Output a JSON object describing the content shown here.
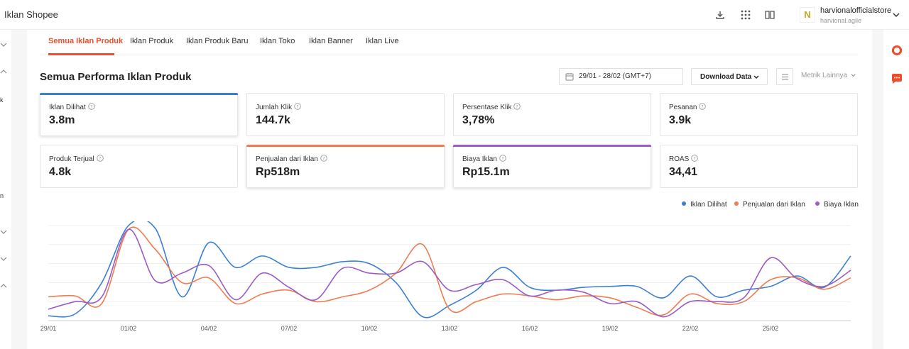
{
  "header": {
    "app_title": "Iklan Shopee",
    "icons": [
      "download-icon",
      "apps-grid-icon",
      "book-icon"
    ],
    "store_logo_letter": "N",
    "store_name": "harvionalofficialstore",
    "store_sub": "harvional.agile"
  },
  "leftnav": {
    "letters": [
      "k",
      "n"
    ]
  },
  "tabs": [
    {
      "label": "Semua Iklan Produk",
      "active": true
    },
    {
      "label": "Iklan Produk"
    },
    {
      "label": "Iklan Produk Baru"
    },
    {
      "label": "Iklan Toko"
    },
    {
      "label": "Iklan Banner"
    },
    {
      "label": "Iklan Live"
    }
  ],
  "section": {
    "title": "Semua Performa Iklan Produk",
    "date_range": "29/01 - 28/02 (GMT+7)",
    "download_label": "Download Data",
    "more_metrics_label": "Metrik Lainnya"
  },
  "metrics": [
    {
      "label": "Iklan Dilihat",
      "value": "3.8m",
      "selected_color": "#3b7fd4"
    },
    {
      "label": "Jumlah Klik",
      "value": "144.7k"
    },
    {
      "label": "Persentase Klik",
      "value": "3,78%"
    },
    {
      "label": "Pesanan",
      "value": "3.9k"
    },
    {
      "label": "Produk Terjual",
      "value": "4.8k"
    },
    {
      "label": "Penjualan dari Iklan",
      "value": "Rp518m",
      "selected_color": "#ee7d52"
    },
    {
      "label": "Biaya Iklan",
      "value": "Rp15.1m",
      "selected_color": "#9b5cc4"
    },
    {
      "label": "ROAS",
      "value": "34,41"
    }
  ],
  "chart_data": {
    "type": "line",
    "x": [
      "29/01",
      "30/01",
      "31/01",
      "01/02",
      "02/02",
      "03/02",
      "04/02",
      "05/02",
      "06/02",
      "07/02",
      "08/02",
      "09/02",
      "10/02",
      "11/02",
      "12/02",
      "13/02",
      "14/02",
      "15/02",
      "16/02",
      "17/02",
      "18/02",
      "19/02",
      "20/02",
      "21/02",
      "22/02",
      "23/02",
      "24/02",
      "25/02",
      "26/02",
      "27/02",
      "28/02"
    ],
    "x_tick_labels": [
      "29/01",
      "01/02",
      "04/02",
      "07/02",
      "10/02",
      "13/02",
      "16/02",
      "19/02",
      "22/02",
      "25/02"
    ],
    "normalized": true,
    "ylim": [
      0,
      100
    ],
    "grid": true,
    "legend_position": "top-right",
    "series": [
      {
        "name": "Iklan Dilihat",
        "color": "#3b7fd4",
        "values": [
          5,
          7,
          40,
          100,
          97,
          25,
          82,
          56,
          68,
          56,
          56,
          62,
          60,
          40,
          4,
          16,
          32,
          56,
          35,
          32,
          35,
          36,
          36,
          24,
          47,
          25,
          32,
          36,
          47,
          35,
          68
        ]
      },
      {
        "name": "Penjualan dari Iklan",
        "color": "#ee7d52",
        "values": [
          25,
          26,
          18,
          96,
          75,
          40,
          45,
          18,
          28,
          32,
          20,
          25,
          32,
          50,
          80,
          12,
          20,
          28,
          26,
          22,
          26,
          24,
          14,
          6,
          28,
          18,
          20,
          43,
          45,
          33,
          45
        ]
      },
      {
        "name": "Biaya Iklan",
        "color": "#9b5cc4",
        "values": [
          12,
          20,
          25,
          96,
          42,
          50,
          58,
          22,
          50,
          35,
          22,
          55,
          50,
          50,
          62,
          32,
          38,
          43,
          26,
          32,
          30,
          18,
          20,
          4,
          20,
          20,
          24,
          66,
          44,
          36,
          53
        ]
      }
    ]
  }
}
